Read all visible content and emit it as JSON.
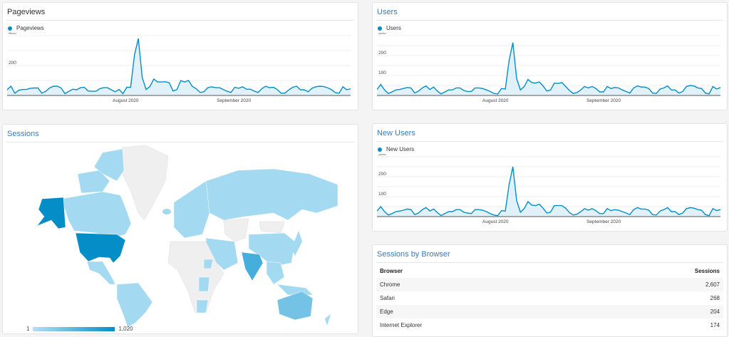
{
  "cards": {
    "pageviews": {
      "title": "Pageviews",
      "legend": "Pageviews",
      "y_ticks": [
        "400",
        "200"
      ],
      "x_ticks": [
        "August 2020",
        "September 2020"
      ]
    },
    "users": {
      "title": "Users",
      "legend": "Users",
      "y_ticks": [
        "300",
        "200",
        "100"
      ],
      "x_ticks": [
        "August 2020",
        "September 2020"
      ]
    },
    "new_users": {
      "title": "New Users",
      "legend": "New Users",
      "y_ticks": [
        "300",
        "200",
        "100"
      ],
      "x_ticks": [
        "August 2020",
        "September 2020"
      ]
    },
    "sessions_map": {
      "title": "Sessions",
      "legend_min": "1",
      "legend_max": "1,020"
    },
    "sessions_by_browser": {
      "title": "Sessions by Browser",
      "columns": [
        "Browser",
        "Sessions"
      ],
      "rows": [
        {
          "browser": "Chrome",
          "sessions": "2,607"
        },
        {
          "browser": "Safari",
          "sessions": "268"
        },
        {
          "browser": "Edge",
          "sessions": "204"
        },
        {
          "browser": "Internet Explorer",
          "sessions": "174"
        }
      ]
    }
  },
  "colors": {
    "accent": "#058dc7",
    "area_fill": "#e1f1fa",
    "title_blue": "#3a7ab8"
  },
  "chart_data": [
    {
      "type": "area",
      "title": "Pageviews",
      "x_ticks": [
        "August 2020",
        "September 2020"
      ],
      "ylim": [
        0,
        400
      ],
      "series": [
        {
          "name": "Pageviews",
          "values": [
            38,
            62,
            15,
            35,
            40,
            40,
            48,
            50,
            50,
            15,
            28,
            50,
            62,
            62,
            50,
            12,
            28,
            42,
            38,
            52,
            55,
            30,
            28,
            28,
            45,
            52,
            52,
            38,
            25,
            40,
            12,
            55,
            55,
            270,
            380,
            120,
            40,
            60,
            110,
            90,
            90,
            92,
            85,
            30,
            40,
            100,
            90,
            100,
            60,
            45,
            20,
            25,
            52,
            58,
            52,
            52,
            40,
            28,
            20,
            55,
            48,
            58,
            42,
            42,
            30,
            20,
            45,
            62,
            52,
            55,
            40,
            15,
            15,
            38,
            55,
            62,
            38,
            38,
            25,
            48,
            58,
            62,
            60,
            52,
            40,
            20,
            15,
            58,
            38,
            45
          ]
        }
      ]
    },
    {
      "type": "area",
      "title": "Users",
      "x_ticks": [
        "August 2020",
        "September 2020"
      ],
      "ylim": [
        0,
        300
      ],
      "series": [
        {
          "name": "Users",
          "values": [
            30,
            55,
            28,
            10,
            18,
            28,
            30,
            35,
            40,
            38,
            12,
            22,
            38,
            48,
            30,
            42,
            22,
            8,
            18,
            28,
            28,
            38,
            38,
            25,
            20,
            20,
            38,
            38,
            35,
            28,
            20,
            10,
            8,
            35,
            32,
            175,
            265,
            85,
            28,
            45,
            80,
            65,
            62,
            68,
            48,
            22,
            28,
            62,
            60,
            65,
            45,
            25,
            10,
            15,
            28,
            45,
            38,
            45,
            35,
            18,
            18,
            45,
            35,
            40,
            38,
            28,
            20,
            12,
            38,
            48,
            42,
            42,
            35,
            12,
            10,
            32,
            38,
            48,
            28,
            28,
            12,
            20,
            45,
            50,
            48,
            38,
            35,
            12,
            8,
            45,
            32,
            40
          ]
        }
      ]
    },
    {
      "type": "area",
      "title": "New Users",
      "x_ticks": [
        "August 2020",
        "September 2020"
      ],
      "ylim": [
        0,
        300
      ],
      "series": [
        {
          "name": "New Users",
          "values": [
            28,
            50,
            25,
            8,
            15,
            25,
            28,
            32,
            38,
            35,
            10,
            18,
            35,
            45,
            28,
            38,
            20,
            5,
            15,
            25,
            25,
            35,
            35,
            22,
            18,
            15,
            35,
            35,
            32,
            25,
            15,
            8,
            5,
            30,
            28,
            160,
            250,
            80,
            22,
            40,
            75,
            58,
            55,
            62,
            42,
            18,
            22,
            55,
            55,
            55,
            42,
            20,
            8,
            12,
            25,
            40,
            32,
            40,
            30,
            15,
            15,
            40,
            30,
            35,
            32,
            25,
            18,
            10,
            35,
            45,
            38,
            38,
            32,
            10,
            8,
            28,
            35,
            45,
            25,
            25,
            10,
            18,
            40,
            45,
            42,
            35,
            32,
            10,
            5,
            40,
            30,
            35
          ]
        }
      ]
    }
  ]
}
